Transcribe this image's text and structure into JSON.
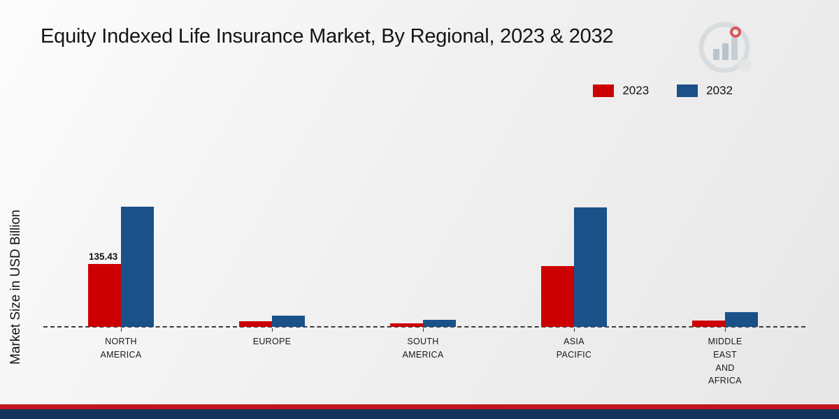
{
  "title": "Equity Indexed Life Insurance Market, By Regional, 2023 & 2032",
  "ylabel": "Market Size in USD Billion",
  "logo": {
    "name": "bar-chart-brand-logo"
  },
  "footer": {
    "red_strip_color": "#c3161c",
    "navy_strip_color": "#14365c"
  },
  "chart_data": {
    "type": "bar",
    "title": "Equity Indexed Life Insurance Market, By Regional, 2023 & 2032",
    "xlabel": "",
    "ylabel": "Market Size in USD Billion",
    "categories": [
      "NORTH AMERICA",
      "EUROPE",
      "SOUTH AMERICA",
      "ASIA PACIFIC",
      "MIDDLE EAST AND AFRICA"
    ],
    "series": [
      {
        "name": "2023",
        "color": "#cc0001",
        "values": [
          135.43,
          12,
          7.5,
          132,
          13
        ]
      },
      {
        "name": "2032",
        "color": "#1a5189",
        "values": [
          260,
          24,
          15,
          258,
          31
        ]
      }
    ],
    "annotations": [
      {
        "series": "2023",
        "category": "NORTH AMERICA",
        "text": "135.43"
      }
    ],
    "ylim": [
      0,
      480
    ],
    "grid": false,
    "baseline_style": "dashed",
    "legend_position": "top-right"
  }
}
